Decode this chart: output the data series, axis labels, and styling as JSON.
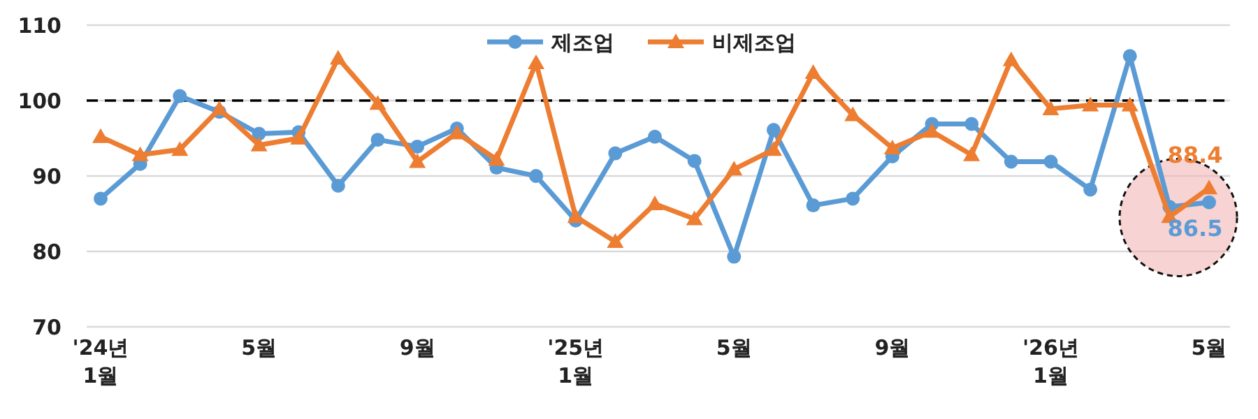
{
  "chart_data": {
    "type": "line",
    "categories": [
      "'24년\n1월",
      null,
      null,
      null,
      "5월",
      null,
      null,
      null,
      "9월",
      null,
      null,
      null,
      "'25년\n1월",
      null,
      null,
      null,
      "5월",
      null,
      null,
      null,
      "9월",
      null,
      null,
      null,
      "'26년\n1월",
      null,
      null,
      null,
      "5월"
    ],
    "series": [
      {
        "name": "제조업",
        "color": "#5b9bd5",
        "marker": "circle",
        "values": [
          87.0,
          91.6,
          100.6,
          98.5,
          95.6,
          95.8,
          88.7,
          94.8,
          93.9,
          96.3,
          91.1,
          90.0,
          84.1,
          93.0,
          95.2,
          92.0,
          79.3,
          96.1,
          86.1,
          87.0,
          92.6,
          96.9,
          96.9,
          91.9,
          91.9,
          88.2,
          105.9,
          85.9,
          86.5
        ],
        "value_labels": [
          null,
          null,
          null,
          null,
          null,
          null,
          null,
          null,
          null,
          null,
          null,
          null,
          null,
          null,
          null,
          null,
          null,
          null,
          null,
          null,
          null,
          null,
          null,
          null,
          null,
          null,
          null,
          null,
          "86.5"
        ]
      },
      {
        "name": "비제조업",
        "color": "#ed7d31",
        "marker": "triangle",
        "values": [
          95.2,
          92.8,
          93.5,
          98.9,
          94.1,
          95.0,
          105.6,
          99.6,
          91.9,
          95.7,
          92.2,
          105.0,
          84.6,
          81.3,
          86.3,
          84.3,
          90.9,
          93.5,
          103.7,
          98.1,
          93.7,
          95.9,
          92.8,
          105.4,
          98.9,
          99.4,
          99.4,
          84.6,
          88.4
        ],
        "value_labels": [
          null,
          null,
          null,
          null,
          null,
          null,
          null,
          null,
          null,
          null,
          null,
          null,
          null,
          null,
          null,
          null,
          null,
          null,
          null,
          null,
          null,
          null,
          null,
          null,
          null,
          null,
          null,
          null,
          "88.4"
        ]
      }
    ],
    "ylim": [
      70,
      110
    ],
    "yticks": [
      70,
      80,
      90,
      100,
      110
    ],
    "grid": "y",
    "legend": "top",
    "ref_lines": [
      {
        "axis": "y",
        "value": 100,
        "line_style": "dashed",
        "color": "#000000"
      }
    ]
  }
}
